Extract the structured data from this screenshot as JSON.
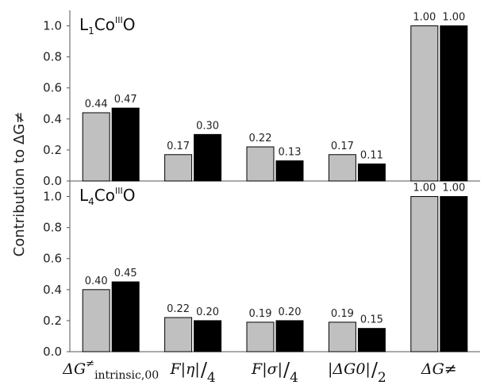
{
  "chart_data": {
    "type": "bar",
    "ylabel": "Contribution to ΔG≠",
    "ylim": [
      0,
      1.1
    ],
    "yticks": [
      "0.0",
      "0.2",
      "0.4",
      "0.6",
      "0.8",
      "1.0"
    ],
    "categories": [
      "ΔG≠intrinsic,00",
      "F|η|/4",
      "F|σ|/4",
      "|ΔG0|/2",
      "ΔG≠"
    ],
    "category_display": [
      {
        "main": "ΔG",
        "sup": "≠",
        "sub": "intrinsic,00",
        "frac": ""
      },
      {
        "main": "F|η|",
        "sup": "",
        "sub": "",
        "frac": "4"
      },
      {
        "main": "F|σ|",
        "sup": "",
        "sub": "",
        "frac": "4"
      },
      {
        "main": "|ΔG0|",
        "sup": "",
        "sub": "",
        "frac": "2"
      },
      {
        "main": "ΔG≠",
        "sup": "",
        "sub": "",
        "frac": ""
      }
    ],
    "series_colors": [
      "#c0c0c0",
      "#000000"
    ],
    "panels": [
      {
        "title": {
          "pre": "L",
          "sub": "1",
          "mid": "Co",
          "sup": "III",
          "post": "O"
        },
        "series": [
          {
            "values": [
              0.44,
              0.17,
              0.22,
              0.17,
              1.0
            ],
            "labels": [
              "0.44",
              "0.17",
              "0.22",
              "0.17",
              "1.00"
            ]
          },
          {
            "values": [
              0.47,
              0.3,
              0.13,
              0.11,
              1.0
            ],
            "labels": [
              "0.47",
              "0.30",
              "0.13",
              "0.11",
              "1.00"
            ]
          }
        ]
      },
      {
        "title": {
          "pre": "L",
          "sub": "4",
          "mid": "Co",
          "sup": "III",
          "post": "O"
        },
        "series": [
          {
            "values": [
              0.4,
              0.22,
              0.19,
              0.19,
              1.0
            ],
            "labels": [
              "0.40",
              "0.22",
              "0.19",
              "0.19",
              "1.00"
            ]
          },
          {
            "values": [
              0.45,
              0.2,
              0.2,
              0.15,
              1.0
            ],
            "labels": [
              "0.45",
              "0.20",
              "0.20",
              "0.15",
              "1.00"
            ]
          }
        ]
      }
    ]
  }
}
